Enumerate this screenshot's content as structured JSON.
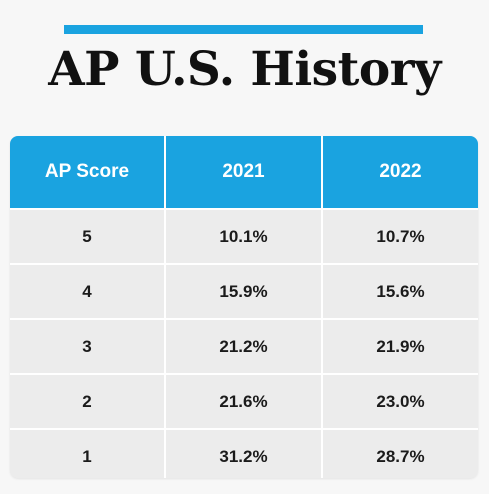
{
  "title": "AP U.S. History",
  "colors": {
    "accent": "#1aa3e0",
    "header_text": "#ffffff",
    "row_background": "#ececec"
  },
  "table": {
    "headers": [
      "AP Score",
      "2021",
      "2022"
    ],
    "rows": [
      [
        "5",
        "10.1%",
        "10.7%"
      ],
      [
        "4",
        "15.9%",
        "15.6%"
      ],
      [
        "3",
        "21.2%",
        "21.9%"
      ],
      [
        "2",
        "21.6%",
        "23.0%"
      ],
      [
        "1",
        "31.2%",
        "28.7%"
      ]
    ]
  }
}
